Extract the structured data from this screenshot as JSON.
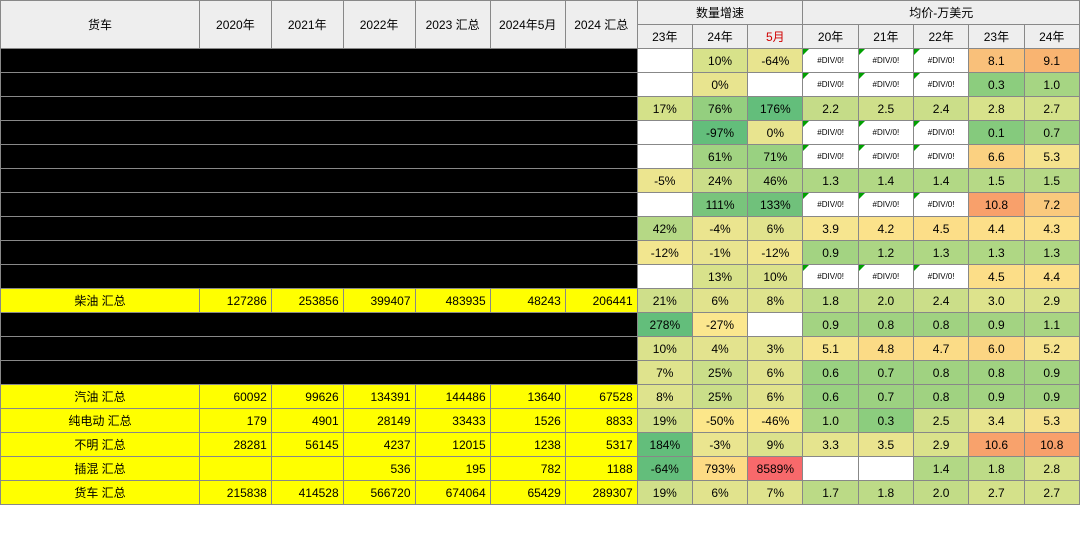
{
  "headers": {
    "main": "货车",
    "y2020": "2020年",
    "y2021": "2021年",
    "y2022": "2022年",
    "y2023sum": "2023 汇总",
    "y2024_5": "2024年5月",
    "y2024sum": "2024 汇总",
    "growth": "数量增速",
    "g23": "23年",
    "g24": "24年",
    "g5": "5月",
    "price": "均价-万美元",
    "p20": "20年",
    "p21": "21年",
    "p22": "22年",
    "p23": "23年",
    "p24": "24年"
  },
  "col_widths": {
    "label": 180,
    "y": 65,
    "g": 50,
    "p": 50
  },
  "colors": {
    "header_bg": "#eeeeee",
    "yellow_hl": "#ffff00",
    "black": "#000000"
  },
  "black_rows_group1": 10,
  "black_rows_group2": 3,
  "rows": [
    {
      "black": true,
      "v": [
        "",
        "",
        "",
        "",
        "",
        ""
      ],
      "g": [
        {
          "t": "",
          "bg": "#ffffff"
        },
        {
          "t": "10%",
          "bg": "#d7e28a"
        },
        {
          "t": "-64%",
          "bg": "#e8e48f"
        }
      ],
      "p": [
        {
          "t": "#DIV/0!",
          "bg": "#ffffff",
          "err": 1
        },
        {
          "t": "#DIV/0!",
          "bg": "#ffffff",
          "err": 1
        },
        {
          "t": "#DIV/0!",
          "bg": "#ffffff",
          "err": 1
        },
        {
          "t": "8.1",
          "bg": "#f9c07a"
        },
        {
          "t": "9.1",
          "bg": "#f9b471"
        }
      ]
    },
    {
      "black": true,
      "v": [
        "",
        "",
        "",
        "",
        "",
        ""
      ],
      "g": [
        {
          "t": "",
          "bg": "#ffffff"
        },
        {
          "t": "0%",
          "bg": "#e8e48f"
        },
        {
          "t": "",
          "bg": "#ffffff"
        }
      ],
      "p": [
        {
          "t": "#DIV/0!",
          "bg": "#ffffff",
          "err": 1
        },
        {
          "t": "#DIV/0!",
          "bg": "#ffffff",
          "err": 1
        },
        {
          "t": "#DIV/0!",
          "bg": "#ffffff",
          "err": 1
        },
        {
          "t": "0.3",
          "bg": "#8ccd7e"
        },
        {
          "t": "1.0",
          "bg": "#a6d583"
        }
      ]
    },
    {
      "black": true,
      "v": [
        "",
        "",
        "",
        "",
        "",
        ""
      ],
      "g": [
        {
          "t": "17%",
          "bg": "#d4e189"
        },
        {
          "t": "76%",
          "bg": "#94cf7f"
        },
        {
          "t": "176%",
          "bg": "#63be7b"
        }
      ],
      "p": [
        {
          "t": "2.2",
          "bg": "#c5dc88"
        },
        {
          "t": "2.5",
          "bg": "#cfdf8a"
        },
        {
          "t": "2.4",
          "bg": "#cbde89"
        },
        {
          "t": "2.8",
          "bg": "#d8e28b"
        },
        {
          "t": "2.7",
          "bg": "#d4e18a"
        }
      ]
    },
    {
      "black": true,
      "v": [
        "",
        "",
        "",
        "",
        "",
        ""
      ],
      "g": [
        {
          "t": "",
          "bg": "#ffffff"
        },
        {
          "t": "-97%",
          "bg": "#63be7b"
        },
        {
          "t": "0%",
          "bg": "#e8e48f"
        }
      ],
      "p": [
        {
          "t": "#DIV/0!",
          "bg": "#ffffff",
          "err": 1
        },
        {
          "t": "#DIV/0!",
          "bg": "#ffffff",
          "err": 1
        },
        {
          "t": "#DIV/0!",
          "bg": "#ffffff",
          "err": 1
        },
        {
          "t": "0.1",
          "bg": "#85ca7d"
        },
        {
          "t": "0.7",
          "bg": "#9cd181"
        }
      ]
    },
    {
      "black": true,
      "v": [
        "",
        "",
        "",
        "",
        "",
        ""
      ],
      "g": [
        {
          "t": "",
          "bg": "#ffffff"
        },
        {
          "t": "61%",
          "bg": "#a2d382"
        },
        {
          "t": "71%",
          "bg": "#99d181"
        }
      ],
      "p": [
        {
          "t": "#DIV/0!",
          "bg": "#ffffff",
          "err": 1
        },
        {
          "t": "#DIV/0!",
          "bg": "#ffffff",
          "err": 1
        },
        {
          "t": "#DIV/0!",
          "bg": "#ffffff",
          "err": 1
        },
        {
          "t": "6.6",
          "bg": "#fbd181"
        },
        {
          "t": "5.3",
          "bg": "#f4e28d"
        }
      ]
    },
    {
      "black": true,
      "v": [
        "",
        "",
        "",
        "",
        "",
        ""
      ],
      "g": [
        {
          "t": "-5%",
          "bg": "#ece58f"
        },
        {
          "t": "24%",
          "bg": "#cbde89"
        },
        {
          "t": "46%",
          "bg": "#b0d784"
        }
      ],
      "p": [
        {
          "t": "1.3",
          "bg": "#afd784"
        },
        {
          "t": "1.4",
          "bg": "#b2d885"
        },
        {
          "t": "1.4",
          "bg": "#b2d885"
        },
        {
          "t": "1.5",
          "bg": "#b6d986"
        },
        {
          "t": "1.5",
          "bg": "#b6d986"
        }
      ]
    },
    {
      "black": true,
      "v": [
        "",
        "",
        "",
        "",
        "",
        ""
      ],
      "g": [
        {
          "t": "",
          "bg": "#ffffff"
        },
        {
          "t": "111%",
          "bg": "#79c47c"
        },
        {
          "t": "133%",
          "bg": "#70c17b"
        }
      ],
      "p": [
        {
          "t": "#DIV/0!",
          "bg": "#ffffff",
          "err": 1
        },
        {
          "t": "#DIV/0!",
          "bg": "#ffffff",
          "err": 1
        },
        {
          "t": "#DIV/0!",
          "bg": "#ffffff",
          "err": 1
        },
        {
          "t": "10.8",
          "bg": "#f8a06b"
        },
        {
          "t": "7.2",
          "bg": "#fac97d"
        }
      ]
    },
    {
      "black": true,
      "v": [
        "",
        "",
        "",
        "",
        "",
        ""
      ],
      "g": [
        {
          "t": "42%",
          "bg": "#b5d885"
        },
        {
          "t": "-4%",
          "bg": "#ebe58f"
        },
        {
          "t": "6%",
          "bg": "#e1e38d"
        }
      ],
      "p": [
        {
          "t": "3.9",
          "bg": "#f6e58f"
        },
        {
          "t": "4.2",
          "bg": "#fbe28b"
        },
        {
          "t": "4.5",
          "bg": "#fcde88"
        },
        {
          "t": "4.4",
          "bg": "#fcdf89"
        },
        {
          "t": "4.3",
          "bg": "#fce08a"
        }
      ]
    },
    {
      "black": true,
      "v": [
        "",
        "",
        "",
        "",
        "",
        ""
      ],
      "g": [
        {
          "t": "-12%",
          "bg": "#f2e68f"
        },
        {
          "t": "-1%",
          "bg": "#e9e48f"
        },
        {
          "t": "-12%",
          "bg": "#f2e68f"
        }
      ],
      "p": [
        {
          "t": "0.9",
          "bg": "#a3d382"
        },
        {
          "t": "1.2",
          "bg": "#acd684"
        },
        {
          "t": "1.3",
          "bg": "#afd784"
        },
        {
          "t": "1.3",
          "bg": "#afd784"
        },
        {
          "t": "1.3",
          "bg": "#afd784"
        }
      ]
    },
    {
      "black": true,
      "v": [
        "",
        "",
        "",
        "",
        "",
        ""
      ],
      "g": [
        {
          "t": "",
          "bg": "#ffffff"
        },
        {
          "t": "13%",
          "bg": "#d8e28b"
        },
        {
          "t": "10%",
          "bg": "#dbe28c"
        }
      ],
      "p": [
        {
          "t": "#DIV/0!",
          "bg": "#ffffff",
          "err": 1
        },
        {
          "t": "#DIV/0!",
          "bg": "#ffffff",
          "err": 1
        },
        {
          "t": "#DIV/0!",
          "bg": "#ffffff",
          "err": 1
        },
        {
          "t": "4.5",
          "bg": "#fcde88"
        },
        {
          "t": "4.4",
          "bg": "#fcdf89"
        }
      ]
    },
    {
      "hl": true,
      "label": "柴油 汇总",
      "v": [
        "127286",
        "253856",
        "399407",
        "483935",
        "48243",
        "206441"
      ],
      "g": [
        {
          "t": "21%",
          "bg": "#cfdf8a"
        },
        {
          "t": "6%",
          "bg": "#e1e38d"
        },
        {
          "t": "8%",
          "bg": "#dee38d"
        }
      ],
      "p": [
        {
          "t": "1.8",
          "bg": "#bddb87"
        },
        {
          "t": "2.0",
          "bg": "#c2dc87"
        },
        {
          "t": "2.4",
          "bg": "#cbde89"
        },
        {
          "t": "3.0",
          "bg": "#dde38c"
        },
        {
          "t": "2.9",
          "bg": "#dae28b"
        }
      ]
    },
    {
      "black": true,
      "v": [
        "",
        "",
        "",
        "",
        "",
        ""
      ],
      "g": [
        {
          "t": "278%",
          "bg": "#63be7b"
        },
        {
          "t": "-27%",
          "bg": "#fbe78e"
        },
        {
          "t": "",
          "bg": "#ffffff"
        }
      ],
      "p": [
        {
          "t": "0.9",
          "bg": "#a3d382"
        },
        {
          "t": "0.8",
          "bg": "#a0d281"
        },
        {
          "t": "0.8",
          "bg": "#a0d281"
        },
        {
          "t": "0.9",
          "bg": "#a3d382"
        },
        {
          "t": "1.1",
          "bg": "#a9d583"
        }
      ]
    },
    {
      "black": true,
      "v": [
        "",
        "",
        "",
        "",
        "",
        ""
      ],
      "g": [
        {
          "t": "10%",
          "bg": "#dbe28c"
        },
        {
          "t": "4%",
          "bg": "#e3e38e"
        },
        {
          "t": "3%",
          "bg": "#e4e48e"
        }
      ],
      "p": [
        {
          "t": "5.1",
          "bg": "#f7e48e"
        },
        {
          "t": "4.8",
          "bg": "#fbdb86"
        },
        {
          "t": "4.7",
          "bg": "#fbdc87"
        },
        {
          "t": "6.0",
          "bg": "#fbd583"
        },
        {
          "t": "5.2",
          "bg": "#f6e38e"
        }
      ]
    },
    {
      "black": true,
      "v": [
        "",
        "",
        "",
        "",
        "",
        ""
      ],
      "g": [
        {
          "t": "7%",
          "bg": "#dfe38d"
        },
        {
          "t": "25%",
          "bg": "#cade89"
        },
        {
          "t": "6%",
          "bg": "#e1e38d"
        }
      ],
      "p": [
        {
          "t": "0.6",
          "bg": "#99d181"
        },
        {
          "t": "0.7",
          "bg": "#9cd181"
        },
        {
          "t": "0.8",
          "bg": "#a0d281"
        },
        {
          "t": "0.8",
          "bg": "#a0d281"
        },
        {
          "t": "0.9",
          "bg": "#a3d382"
        }
      ]
    },
    {
      "hl": true,
      "label": "汽油 汇总",
      "v": [
        "60092",
        "99626",
        "134391",
        "144486",
        "13640",
        "67528"
      ],
      "g": [
        {
          "t": "8%",
          "bg": "#dee38d"
        },
        {
          "t": "25%",
          "bg": "#cade89"
        },
        {
          "t": "6%",
          "bg": "#e1e38d"
        }
      ],
      "p": [
        {
          "t": "0.6",
          "bg": "#99d181"
        },
        {
          "t": "0.7",
          "bg": "#9cd181"
        },
        {
          "t": "0.8",
          "bg": "#a0d281"
        },
        {
          "t": "0.9",
          "bg": "#a3d382"
        },
        {
          "t": "0.9",
          "bg": "#a3d382"
        }
      ]
    },
    {
      "hl": true,
      "label": "纯电动 汇总",
      "v": [
        "179",
        "4901",
        "28149",
        "33433",
        "1526",
        "8833"
      ],
      "g": [
        {
          "t": "19%",
          "bg": "#d1e08a"
        },
        {
          "t": "-50%",
          "bg": "#fce78a"
        },
        {
          "t": "-46%",
          "bg": "#fce78b"
        }
      ],
      "p": [
        {
          "t": "1.0",
          "bg": "#a6d583"
        },
        {
          "t": "0.3",
          "bg": "#8ccd7e"
        },
        {
          "t": "2.5",
          "bg": "#cfdf8a"
        },
        {
          "t": "3.4",
          "bg": "#e7e48e"
        },
        {
          "t": "5.3",
          "bg": "#f4e28d"
        }
      ]
    },
    {
      "hl": true,
      "label": "不明 汇总",
      "v": [
        "28281",
        "56145",
        "4237",
        "12015",
        "1238",
        "5317"
      ],
      "g": [
        {
          "t": "184%",
          "bg": "#63be7b"
        },
        {
          "t": "-3%",
          "bg": "#eae58f"
        },
        {
          "t": "9%",
          "bg": "#dce28c"
        }
      ],
      "p": [
        {
          "t": "3.3",
          "bg": "#e5e48e"
        },
        {
          "t": "3.5",
          "bg": "#eae48f"
        },
        {
          "t": "2.9",
          "bg": "#dae28b"
        },
        {
          "t": "10.6",
          "bg": "#f8a26c"
        },
        {
          "t": "10.8",
          "bg": "#f8a06b"
        }
      ]
    },
    {
      "hl": true,
      "label": "插混 汇总",
      "v": [
        "",
        "",
        "536",
        "195",
        "782",
        "1188"
      ],
      "g": [
        {
          "t": "-64%",
          "bg": "#63be7b"
        },
        {
          "t": "793%",
          "bg": "#fddb84"
        },
        {
          "t": "8589%",
          "bg": "#f8696b"
        }
      ],
      "p": [
        {
          "t": "",
          "bg": "#ffffff"
        },
        {
          "t": "",
          "bg": "#ffffff"
        },
        {
          "t": "1.4",
          "bg": "#b2d885"
        },
        {
          "t": "1.8",
          "bg": "#bddb87"
        },
        {
          "t": "2.8",
          "bg": "#d8e28b"
        }
      ]
    },
    {
      "hl": true,
      "label": "货车 汇总",
      "v": [
        "215838",
        "414528",
        "566720",
        "674064",
        "65429",
        "289307"
      ],
      "g": [
        {
          "t": "19%",
          "bg": "#d1e08a"
        },
        {
          "t": "6%",
          "bg": "#e1e38d"
        },
        {
          "t": "7%",
          "bg": "#dfe38d"
        }
      ],
      "p": [
        {
          "t": "1.7",
          "bg": "#bbda86"
        },
        {
          "t": "1.8",
          "bg": "#bddb87"
        },
        {
          "t": "2.0",
          "bg": "#c2dc87"
        },
        {
          "t": "2.7",
          "bg": "#d4e18a"
        },
        {
          "t": "2.7",
          "bg": "#d4e18a"
        }
      ]
    }
  ]
}
